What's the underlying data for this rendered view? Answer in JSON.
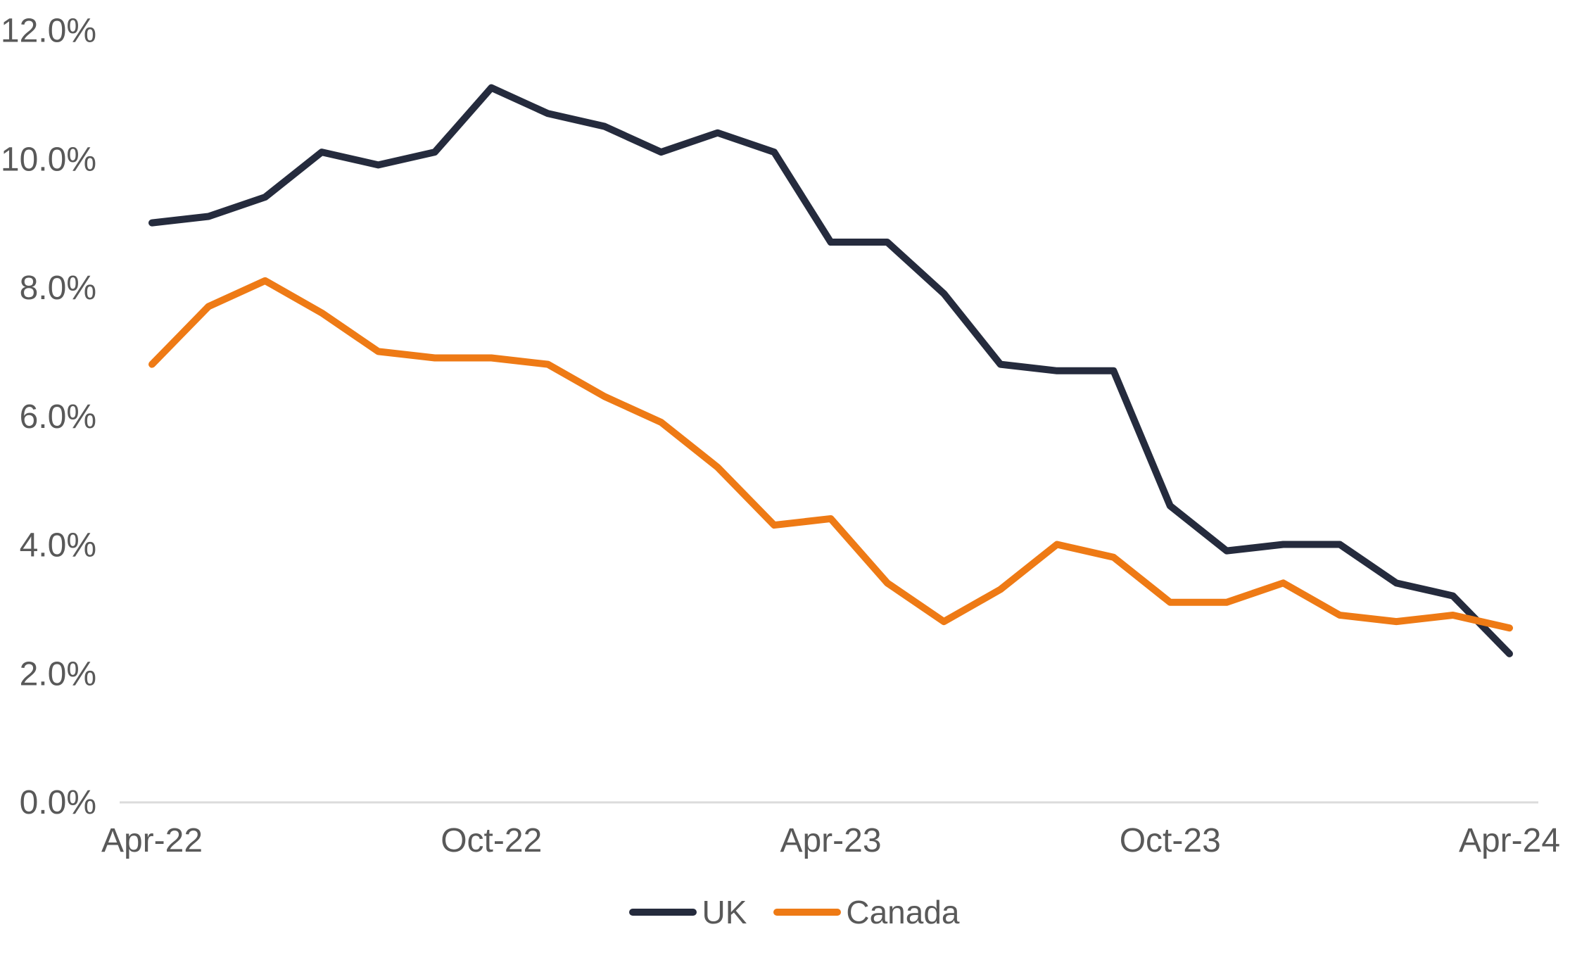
{
  "chart_data": {
    "type": "line",
    "title": "",
    "xlabel": "",
    "ylabel": "",
    "x": [
      "Apr-22",
      "May-22",
      "Jun-22",
      "Jul-22",
      "Aug-22",
      "Sep-22",
      "Oct-22",
      "Nov-22",
      "Dec-22",
      "Jan-23",
      "Feb-23",
      "Mar-23",
      "Apr-23",
      "May-23",
      "Jun-23",
      "Jul-23",
      "Aug-23",
      "Sep-23",
      "Oct-23",
      "Nov-23",
      "Dec-23",
      "Jan-24",
      "Feb-24",
      "Mar-24",
      "Apr-24"
    ],
    "series": [
      {
        "name": "UK",
        "color": "#252B3D",
        "values": [
          9.0,
          9.1,
          9.4,
          10.1,
          9.9,
          10.1,
          11.1,
          10.7,
          10.5,
          10.1,
          10.4,
          10.1,
          8.7,
          8.7,
          7.9,
          6.8,
          6.7,
          6.7,
          4.6,
          3.9,
          4.0,
          4.0,
          3.4,
          3.2,
          2.3
        ]
      },
      {
        "name": "Canada",
        "color": "#EE7A15",
        "values": [
          6.8,
          7.7,
          8.1,
          7.6,
          7.0,
          6.9,
          6.9,
          6.8,
          6.3,
          5.9,
          5.2,
          4.3,
          4.4,
          3.4,
          2.8,
          3.3,
          4.0,
          3.8,
          3.1,
          3.1,
          3.4,
          2.9,
          2.8,
          2.9,
          2.7
        ]
      }
    ],
    "ylim": [
      0,
      12
    ],
    "y_tick_step": 2,
    "y_tick_labels": [
      "0.0%",
      "2.0%",
      "4.0%",
      "6.0%",
      "8.0%",
      "10.0%",
      "12.0%"
    ],
    "x_tick_indices": [
      0,
      6,
      12,
      18,
      24
    ],
    "x_tick_labels": [
      "Apr-22",
      "Oct-22",
      "Apr-23",
      "Oct-23",
      "Apr-24"
    ],
    "grid": false,
    "legend_position": "bottom-center",
    "axis_line_color": "#DBDBDB",
    "tick_text_color": "#595959"
  }
}
